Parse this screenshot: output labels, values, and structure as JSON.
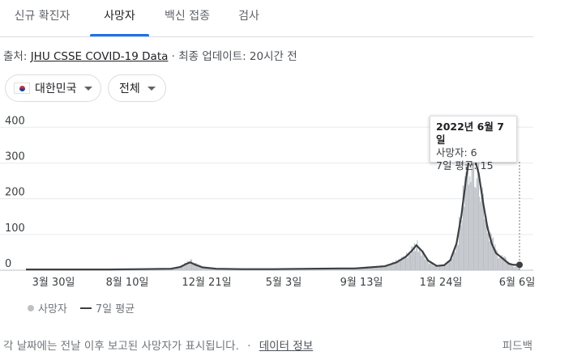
{
  "tabs": [
    "신규 확진자",
    "사망자",
    "백신 접종",
    "검사"
  ],
  "source": {
    "prefix": "출처: ",
    "link": "JHU CSSE COVID-19 Data",
    "updated": " · 최종 업데이트: 20시간 전"
  },
  "filters": {
    "region": "대한민국",
    "region_icon": "south-korea-flag-icon",
    "scope": "전체"
  },
  "tooltip": {
    "date": "2022년 6월 7일",
    "deaths": "사망자: 6",
    "avg": "7일 평균: 15"
  },
  "legend": {
    "bars": "사망자",
    "line": "7일 평균"
  },
  "footer": {
    "note": "각 날짜에는 전날 이후 보고된 사망자가 표시됩니다.",
    "separator": "·",
    "link": "데이터 정보",
    "feedback": "피드백"
  },
  "colors": {
    "accent": "#1a73e8",
    "bars": "#bdc1c6",
    "line": "#3c4043",
    "grid": "#e8eaed"
  },
  "chart_data": {
    "type": "bar",
    "xlabel": "",
    "ylabel": "",
    "ylim": [
      0,
      430
    ],
    "yticks": [
      0,
      100,
      200,
      300,
      400
    ],
    "xticks": [
      "3월 30일",
      "8월 10일",
      "12월 21일",
      "5월 3일",
      "9월 13일",
      "1월 24일",
      "6월 6일"
    ],
    "grid": true,
    "x": [
      "2020-03-30",
      "2020-05-15",
      "2020-07-01",
      "2020-08-10",
      "2020-10-01",
      "2020-11-20",
      "2020-12-05",
      "2020-12-15",
      "2020-12-21",
      "2020-12-28",
      "2021-01-10",
      "2021-02-01",
      "2021-03-15",
      "2021-05-03",
      "2021-07-01",
      "2021-08-20",
      "2021-09-13",
      "2021-10-01",
      "2021-11-01",
      "2021-11-20",
      "2021-12-05",
      "2021-12-15",
      "2021-12-22",
      "2022-01-01",
      "2022-01-10",
      "2022-01-24",
      "2022-02-05",
      "2022-02-15",
      "2022-02-25",
      "2022-03-05",
      "2022-03-12",
      "2022-03-19",
      "2022-03-26",
      "2022-04-02",
      "2022-04-09",
      "2022-04-16",
      "2022-04-23",
      "2022-04-30",
      "2022-05-07",
      "2022-05-14",
      "2022-05-21",
      "2022-05-28",
      "2022-06-07"
    ],
    "series": [
      {
        "name": "사망자",
        "values": [
          3,
          2,
          2,
          2,
          3,
          4,
          12,
          20,
          25,
          18,
          8,
          4,
          3,
          3,
          4,
          6,
          5,
          8,
          12,
          25,
          40,
          60,
          75,
          50,
          25,
          10,
          15,
          30,
          80,
          160,
          260,
          350,
          330,
          300,
          200,
          130,
          80,
          50,
          40,
          30,
          20,
          10,
          6
        ]
      },
      {
        "name": "7일 평균",
        "values": [
          2,
          2,
          2,
          2,
          3,
          4,
          9,
          18,
          22,
          16,
          8,
          4,
          3,
          3,
          4,
          5,
          5,
          7,
          11,
          22,
          38,
          55,
          70,
          52,
          27,
          12,
          14,
          28,
          75,
          155,
          250,
          330,
          315,
          270,
          190,
          120,
          75,
          48,
          38,
          28,
          18,
          15,
          15
        ]
      }
    ]
  }
}
